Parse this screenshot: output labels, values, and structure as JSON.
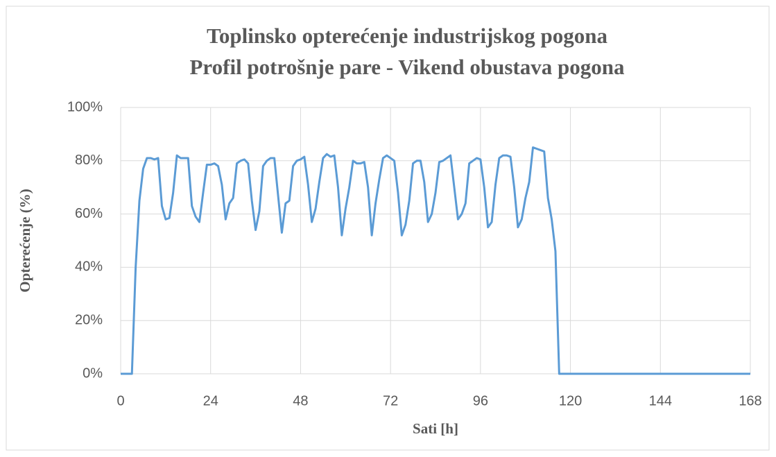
{
  "chart_data": {
    "type": "line",
    "title": "Toplinsko opterećenje industrijskog pogona",
    "subtitle": "Profil potrošnje pare - Vikend obustava pogona",
    "x_label": "Sati [h]",
    "y_label": "Opterećenje (%)",
    "x": [
      0,
      1,
      2,
      3,
      4,
      5,
      6,
      7,
      8,
      9,
      10,
      11,
      12,
      13,
      14,
      15,
      16,
      17,
      18,
      19,
      20,
      21,
      22,
      23,
      24,
      25,
      26,
      27,
      28,
      29,
      30,
      31,
      32,
      33,
      34,
      35,
      36,
      37,
      38,
      39,
      40,
      41,
      42,
      43,
      44,
      45,
      46,
      47,
      48,
      49,
      50,
      51,
      52,
      53,
      54,
      55,
      56,
      57,
      58,
      59,
      60,
      61,
      62,
      63,
      64,
      65,
      66,
      67,
      68,
      69,
      70,
      71,
      72,
      73,
      74,
      75,
      76,
      77,
      78,
      79,
      80,
      81,
      82,
      83,
      84,
      85,
      86,
      87,
      88,
      89,
      90,
      91,
      92,
      93,
      94,
      95,
      96,
      97,
      98,
      99,
      100,
      101,
      102,
      103,
      104,
      105,
      106,
      107,
      108,
      109,
      110,
      111,
      112,
      113,
      114,
      115,
      116,
      117,
      118,
      119,
      120,
      168
    ],
    "series": [
      {
        "name": "Opterećenje",
        "color": "#5b9bd5",
        "values": [
          0,
          0,
          0,
          0,
          40,
          65,
          77,
          81,
          81,
          80.5,
          81,
          63,
          58,
          58.5,
          68,
          82,
          81,
          81,
          81,
          63,
          59,
          57,
          68,
          78.5,
          78.5,
          79,
          78,
          71,
          58,
          64,
          66,
          79,
          80,
          80.5,
          79,
          65,
          54,
          61,
          78,
          80,
          81,
          81,
          67,
          53,
          64,
          65,
          78,
          80,
          80.5,
          81.5,
          71,
          57,
          62,
          72,
          81,
          82.5,
          81.5,
          82,
          70,
          52,
          62,
          70,
          80,
          79,
          79,
          79.5,
          70,
          52,
          64,
          73,
          81,
          82,
          81,
          80,
          68,
          52,
          56,
          65,
          79,
          80,
          80,
          72,
          57,
          60,
          68,
          79.5,
          80,
          81,
          82,
          70,
          58,
          60,
          64,
          79,
          80,
          81,
          80.5,
          70,
          55,
          57,
          71,
          81,
          82,
          82,
          81.5,
          70,
          55,
          58,
          66,
          72,
          85,
          84.5,
          84,
          83.5,
          66,
          58,
          46,
          0,
          0,
          0,
          0,
          0
        ]
      }
    ],
    "xlim": [
      0,
      168
    ],
    "xticks": [
      0,
      24,
      48,
      72,
      96,
      120,
      144,
      168
    ],
    "ylim": [
      0,
      100
    ],
    "yticks": [
      {
        "value": 0,
        "label": "0%"
      },
      {
        "value": 20,
        "label": "20%"
      },
      {
        "value": 40,
        "label": "40%"
      },
      {
        "value": 60,
        "label": "60%"
      },
      {
        "value": 80,
        "label": "80%"
      },
      {
        "value": 100,
        "label": "100%"
      }
    ],
    "grid": true
  }
}
